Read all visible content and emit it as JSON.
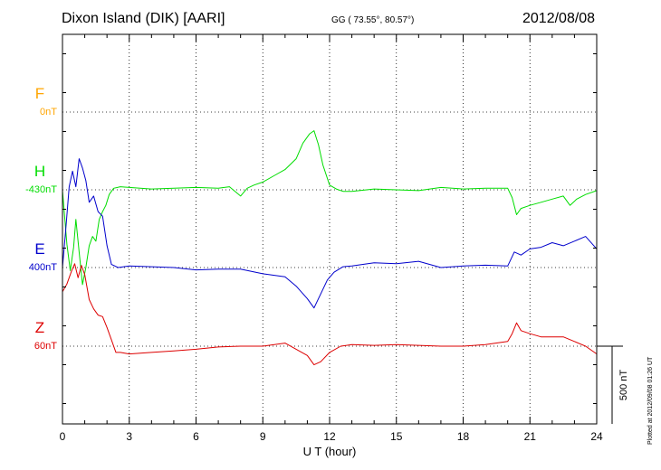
{
  "header": {
    "station": "Dixon Island (DIK)  [AARI]",
    "coords": "GG ( 73.55°,  80.57°)",
    "date": "2012/08/08"
  },
  "stamp": "Plotted at 2012/09/08 01:26 UT",
  "colors": {
    "F": "#ffa500",
    "H": "#00dd00",
    "E": "#0000cc",
    "Z": "#dd0000",
    "grid": "#000000"
  },
  "chart_data": {
    "type": "line",
    "title": "Dixon Island (DIK)  [AARI]",
    "xlabel": "U T (hour)",
    "xlim": [
      0,
      24
    ],
    "xticks": [
      "0",
      "3",
      "6",
      "9",
      "12",
      "15",
      "18",
      "21",
      "24"
    ],
    "scale_bar": "500 nT",
    "components": [
      {
        "name": "F",
        "baseline": "0nT",
        "color": "#ffa500"
      },
      {
        "name": "H",
        "baseline": "-430nT",
        "color": "#00dd00"
      },
      {
        "name": "E",
        "baseline": "400nT",
        "color": "#0000cc"
      },
      {
        "name": "Z",
        "baseline": "60nT",
        "color": "#dd0000"
      }
    ],
    "series": [
      {
        "name": "H",
        "unit": "nT offset from baseline",
        "x": [
          0,
          0.2,
          0.35,
          0.5,
          0.6,
          0.75,
          0.9,
          1.05,
          1.2,
          1.35,
          1.5,
          1.65,
          1.8,
          1.95,
          2.1,
          2.3,
          2.6,
          3,
          4,
          5,
          6,
          7,
          7.5,
          8,
          8.3,
          8.6,
          9,
          9.5,
          10,
          10.5,
          10.8,
          11.1,
          11.3,
          11.5,
          11.7,
          12,
          12.3,
          12.6,
          13,
          14,
          15,
          16,
          17,
          18,
          19,
          20,
          20.2,
          20.4,
          20.6,
          21,
          21.5,
          22,
          22.5,
          22.8,
          23.1,
          23.5,
          24
        ],
        "y": [
          -5,
          -350,
          -520,
          -370,
          -190,
          -400,
          -610,
          -500,
          -360,
          -300,
          -330,
          -190,
          -140,
          -100,
          -30,
          10,
          20,
          15,
          5,
          10,
          15,
          10,
          20,
          -40,
          10,
          30,
          50,
          90,
          130,
          200,
          300,
          360,
          380,
          290,
          160,
          30,
          5,
          -10,
          -10,
          5,
          0,
          -5,
          15,
          5,
          10,
          10,
          -50,
          -160,
          -120,
          -100,
          -80,
          -60,
          -40,
          -100,
          -60,
          -30,
          -5
        ]
      },
      {
        "name": "E",
        "unit": "nT offset from baseline",
        "x": [
          0,
          0.15,
          0.3,
          0.45,
          0.6,
          0.75,
          0.9,
          1.05,
          1.2,
          1.4,
          1.6,
          1.8,
          2,
          2.2,
          2.5,
          3,
          4,
          5,
          6,
          7,
          8,
          9,
          10,
          10.5,
          11,
          11.3,
          11.6,
          11.9,
          12.2,
          12.6,
          13,
          14,
          15,
          16,
          17,
          18,
          19,
          20,
          20.3,
          20.6,
          21,
          21.5,
          22,
          22.5,
          23,
          23.5,
          24
        ],
        "y": [
          0,
          250,
          520,
          620,
          520,
          700,
          640,
          560,
          420,
          460,
          360,
          330,
          140,
          20,
          0,
          10,
          5,
          0,
          -15,
          -10,
          -10,
          -40,
          -60,
          -120,
          -200,
          -260,
          -170,
          -80,
          -30,
          5,
          10,
          30,
          25,
          40,
          0,
          10,
          15,
          10,
          100,
          80,
          120,
          130,
          160,
          140,
          170,
          200,
          120
        ]
      },
      {
        "name": "Z",
        "unit": "nT offset from baseline",
        "x": [
          0,
          0.2,
          0.4,
          0.55,
          0.7,
          0.85,
          1,
          1.2,
          1.4,
          1.6,
          1.8,
          2,
          2.2,
          2.4,
          2.6,
          3,
          4,
          5,
          6,
          7,
          8,
          9,
          10,
          10.5,
          11,
          11.3,
          11.6,
          12,
          12.5,
          13,
          14,
          15,
          16,
          17,
          18,
          19,
          20,
          20.2,
          20.4,
          20.6,
          21,
          21.5,
          22,
          22.5,
          23,
          23.5,
          24
        ],
        "y": [
          350,
          400,
          480,
          530,
          440,
          520,
          460,
          300,
          240,
          200,
          190,
          120,
          40,
          -40,
          -40,
          -50,
          -40,
          -30,
          -20,
          -5,
          0,
          0,
          20,
          -20,
          -60,
          -120,
          -100,
          -40,
          0,
          10,
          5,
          10,
          5,
          0,
          0,
          10,
          30,
          80,
          150,
          100,
          80,
          60,
          60,
          60,
          30,
          0,
          -50
        ]
      }
    ]
  }
}
